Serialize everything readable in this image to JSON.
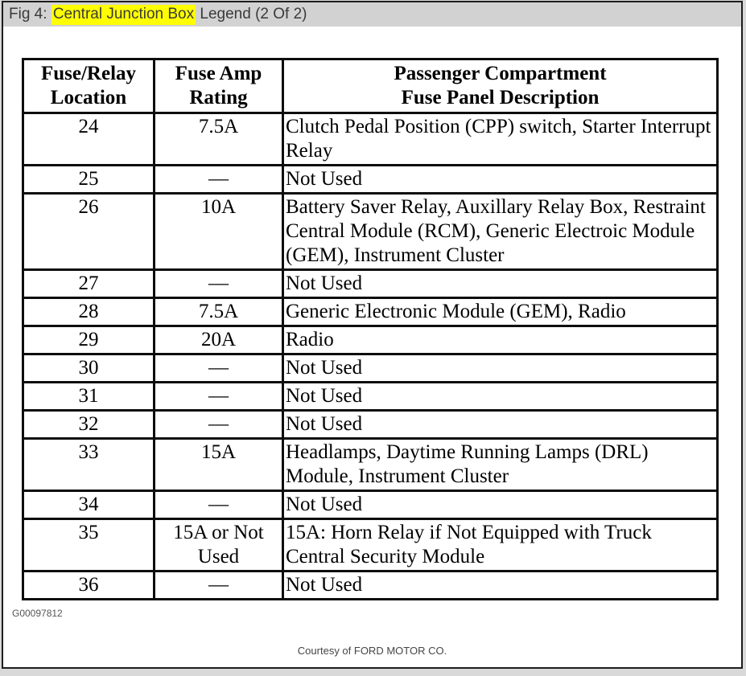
{
  "title_bar": {
    "prefix": "Fig 4: ",
    "highlighted": "Central Junction Box",
    "suffix": " Legend (2 Of 2)",
    "background_color": "#d2d2d2",
    "highlight_color": "#ffff00",
    "text_color": "#3a3a3a"
  },
  "table": {
    "headers": [
      {
        "line1": "Fuse/Relay",
        "line2": "Location"
      },
      {
        "line1": "Fuse Amp",
        "line2": "Rating"
      },
      {
        "line1": "Passenger Compartment",
        "line2": "Fuse Panel Description"
      }
    ],
    "rows": [
      {
        "location": "24",
        "rating": "7.5A",
        "description": "Clutch Pedal Position (CPP) switch, Starter Interrupt Relay"
      },
      {
        "location": "25",
        "rating": "—",
        "description": "Not Used"
      },
      {
        "location": "26",
        "rating": "10A",
        "description": "Battery Saver Relay, Auxillary Relay Box, Restraint Central Module (RCM), Generic Electroic Module (GEM), Instrument Cluster"
      },
      {
        "location": "27",
        "rating": "—",
        "description": "Not Used"
      },
      {
        "location": "28",
        "rating": "7.5A",
        "description": "Generic Electronic Module (GEM), Radio"
      },
      {
        "location": "29",
        "rating": "20A",
        "description": "Radio"
      },
      {
        "location": "30",
        "rating": "—",
        "description": "Not Used"
      },
      {
        "location": "31",
        "rating": "—",
        "description": "Not Used"
      },
      {
        "location": "32",
        "rating": "—",
        "description": "Not Used"
      },
      {
        "location": "33",
        "rating": "15A",
        "description": "Headlamps, Daytime Running Lamps (DRL) Module, Instrument Cluster"
      },
      {
        "location": "34",
        "rating": "—",
        "description": "Not Used"
      },
      {
        "location": "35",
        "rating": "15A or Not Used",
        "description": "15A: Horn Relay if Not Equipped with Truck Central Security Module"
      },
      {
        "location": "36",
        "rating": "—",
        "description": "Not Used"
      }
    ]
  },
  "figure_id": "G00097812",
  "courtesy": "Courtesy of FORD MOTOR CO."
}
